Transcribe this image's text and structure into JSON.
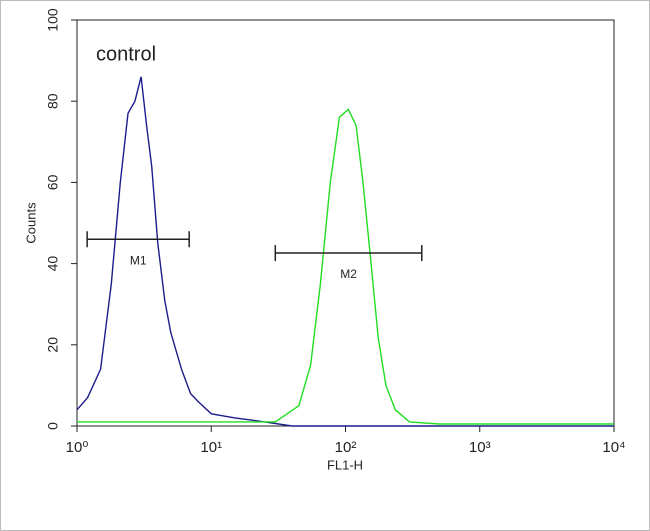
{
  "chart_data": {
    "type": "line",
    "annotation": "control",
    "xlabel": "FL1-H",
    "ylabel": "Counts",
    "xscale": "log",
    "xlim": [
      1,
      10000
    ],
    "ylim": [
      0,
      100
    ],
    "xticks": [
      {
        "value": 1,
        "label": "10⁰"
      },
      {
        "value": 10,
        "label": "10¹"
      },
      {
        "value": 100,
        "label": "10²"
      },
      {
        "value": 1000,
        "label": "10³"
      },
      {
        "value": 10000,
        "label": "10⁴"
      }
    ],
    "yticks": [
      0,
      20,
      40,
      60,
      80,
      100
    ],
    "grid": false,
    "series": [
      {
        "color": "#1c1c8c",
        "x": [
          1,
          1.2,
          1.5,
          1.8,
          2.1,
          2.4,
          2.7,
          3,
          3.3,
          3.6,
          4,
          4.5,
          5,
          6,
          7,
          8,
          10,
          15,
          25,
          40,
          100,
          1000,
          10000
        ],
        "values": [
          4,
          7,
          14,
          35,
          60,
          77,
          80,
          86,
          74,
          64,
          45,
          31,
          23,
          14,
          8,
          6,
          3,
          2,
          1,
          0,
          0,
          0,
          0
        ]
      },
      {
        "color": "#22dd22",
        "x": [
          1,
          10,
          30,
          45,
          55,
          65,
          77,
          90,
          105,
          120,
          135,
          155,
          175,
          200,
          235,
          300,
          500,
          10000
        ],
        "values": [
          1,
          1,
          1,
          5,
          15,
          35,
          60,
          76,
          78,
          74,
          60,
          40,
          22,
          10,
          4,
          1,
          0.5,
          0.5
        ]
      }
    ],
    "markers": [
      {
        "label": "M1",
        "x": [
          1.19,
          6.85
        ],
        "y": 46
      },
      {
        "label": "M2",
        "x": [
          30,
          370
        ],
        "y": 42.6
      }
    ]
  }
}
